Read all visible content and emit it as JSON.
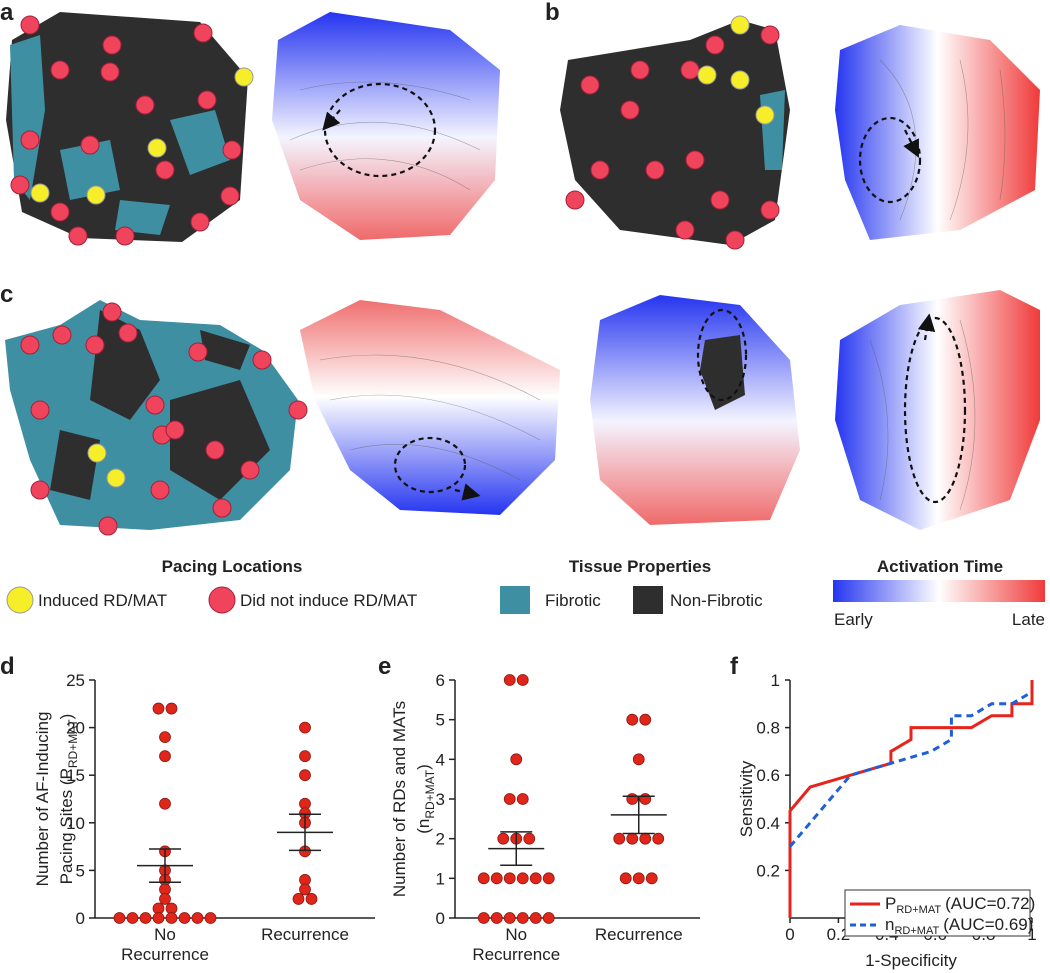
{
  "panel_labels": [
    "a",
    "b",
    "c",
    "d",
    "e",
    "f"
  ],
  "legend": {
    "pacing": {
      "title": "Pacing Locations",
      "items": [
        "Induced RD/MAT",
        "Did not induce RD/MAT"
      ]
    },
    "tissue": {
      "title": "Tissue Properties",
      "items": [
        "Fibrotic",
        "Non-Fibrotic"
      ]
    },
    "activation": {
      "title": "Activation Time",
      "low": "Early",
      "high": "Late"
    }
  },
  "chart_data": [
    {
      "type": "strip",
      "ylabel": [
        "Number of  AF-Inducing",
        "Pacing Sites (P",
        "RD+MAT",
        ")"
      ],
      "categories": [
        "No\nRecurrence",
        "Recurrence"
      ],
      "values": [
        [
          22,
          22,
          19,
          17,
          12,
          7,
          5,
          4,
          3,
          2,
          1,
          1,
          0,
          0,
          0,
          0,
          0,
          0,
          0,
          0
        ],
        [
          20,
          17,
          15,
          12,
          11,
          10,
          7,
          4,
          3,
          2,
          2
        ]
      ],
      "means": [
        5.5,
        9
      ],
      "errors": [
        1.75,
        1.9
      ],
      "color": "#e0261b",
      "ylim": [
        0,
        25
      ],
      "yticks": [
        0,
        5,
        10,
        15,
        20,
        25
      ]
    },
    {
      "type": "strip",
      "ylabel": [
        "Number of RDs and MATs",
        "(n",
        "RD+MAT",
        ")"
      ],
      "categories": [
        "No\nRecurrence",
        "Recurrence"
      ],
      "values": [
        [
          6,
          6,
          4,
          3,
          3,
          2,
          2,
          2,
          1,
          1,
          1,
          1,
          1,
          1,
          0,
          0,
          0,
          0,
          0,
          0
        ],
        [
          5,
          5,
          4,
          3,
          3,
          2,
          2,
          2,
          2,
          1,
          1,
          1
        ]
      ],
      "means": [
        1.75,
        2.6
      ],
      "errors": [
        0.42,
        0.47
      ],
      "color": "#e0261b",
      "ylim": [
        0,
        6
      ],
      "yticks": [
        0,
        1,
        2,
        3,
        4,
        5,
        6
      ]
    },
    {
      "type": "line",
      "xlabel": "1-Specificity",
      "ylabel": "Sensitivity",
      "xlim": [
        0,
        1
      ],
      "ylim": [
        0,
        1
      ],
      "xticks": [
        0,
        0.2,
        0.4,
        0.6,
        0.8,
        1
      ],
      "yticks": [
        0.2,
        0.4,
        0.6,
        0.8,
        1
      ],
      "series": [
        {
          "name": "P",
          "name_sub": "RD+MAT",
          "name_suffix": "(AUC=0.72)",
          "color": "#e8231b",
          "dashed": false,
          "x": [
            0,
            0,
            0.083,
            0.417,
            0.417,
            0.5,
            0.5,
            0.75,
            0.833,
            0.917,
            0.917,
            1,
            1
          ],
          "values": [
            0,
            0.45,
            0.55,
            0.65,
            0.7,
            0.75,
            0.8,
            0.8,
            0.85,
            0.85,
            0.9,
            0.9,
            1
          ]
        },
        {
          "name": "n",
          "name_sub": "RD+MAT",
          "name_suffix": "(AUC=0.69)",
          "color": "#1f5fd8",
          "dashed": true,
          "x": [
            0,
            0.25,
            0.417,
            0.583,
            0.667,
            0.667,
            0.75,
            0.833,
            0.917,
            1
          ],
          "values": [
            0.3,
            0.6,
            0.65,
            0.7,
            0.75,
            0.85,
            0.85,
            0.9,
            0.9,
            0.95
          ]
        }
      ]
    }
  ]
}
